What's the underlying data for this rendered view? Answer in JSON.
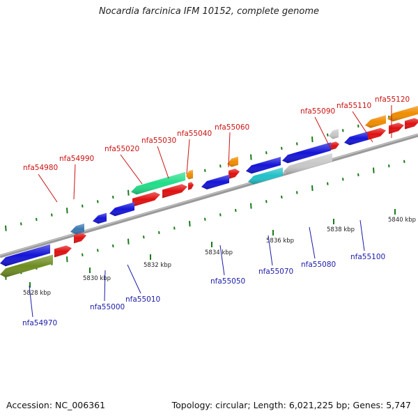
{
  "title": "Nocardia farcinica IFM 10152, complete genome",
  "footer": {
    "accession": "Accession: NC_006361",
    "topology": "Topology: circular; Length: 6,021,225 bp; Genes: 5,747"
  },
  "ticks": [
    {
      "kbp": 5828,
      "label": "5828 kbp"
    },
    {
      "kbp": 5830,
      "label": "5830 kbp"
    },
    {
      "kbp": 5832,
      "label": "5832 kbp"
    },
    {
      "kbp": 5834,
      "label": "5834 kbp"
    },
    {
      "kbp": 5836,
      "label": "5836 kbp"
    },
    {
      "kbp": 5838,
      "label": "5838 kbp"
    },
    {
      "kbp": 5840,
      "label": "5840 kbp"
    }
  ],
  "gene_labels_top": [
    {
      "name": "nfa54980"
    },
    {
      "name": "nfa54990"
    },
    {
      "name": "nfa55020"
    },
    {
      "name": "nfa55030"
    },
    {
      "name": "nfa55040"
    },
    {
      "name": "nfa55060"
    },
    {
      "name": "nfa55090"
    },
    {
      "name": "nfa55110"
    },
    {
      "name": "nfa55120"
    }
  ],
  "gene_labels_bottom": [
    {
      "name": "nfa54970"
    },
    {
      "name": "nfa55000"
    },
    {
      "name": "nfa55010"
    },
    {
      "name": "nfa55050"
    },
    {
      "name": "nfa55070"
    },
    {
      "name": "nfa55080"
    },
    {
      "name": "nfa55100"
    }
  ],
  "colors": {
    "red": "#e01010",
    "blue": "#1414d8",
    "orange": "#f08c00",
    "teal_green": "#22dd88",
    "steel_blue": "#3a78b0",
    "light_gray": "#c8c8c8",
    "olive": "#6e8c20",
    "cyan": "#20c0c8",
    "backbone": "#808080",
    "tick_green": "#1a7a1a",
    "label_red": "#cc1111",
    "label_blue": "#1a1aa8"
  }
}
